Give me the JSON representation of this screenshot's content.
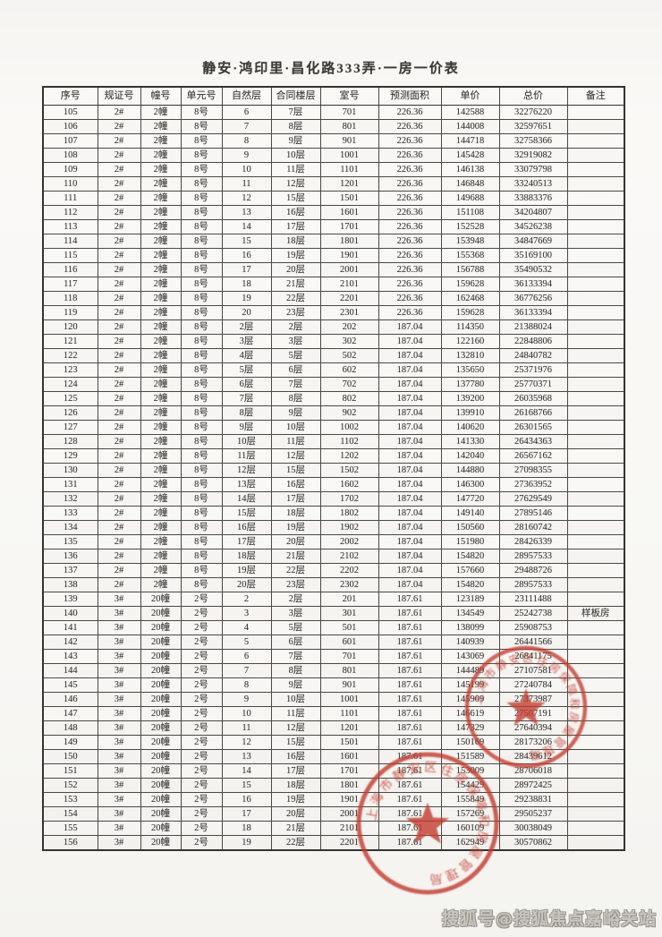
{
  "page": {
    "title": "静安·鸿印里·昌化路333弄·一房一价表"
  },
  "watermark": {
    "text": "搜狐号@搜狐焦点嘉峪关站"
  },
  "colors": {
    "stamp_red": "#c23b2e",
    "ink": "#3a3835",
    "paper": "#f8f7f4",
    "watermark_gray": "#9b9892"
  },
  "stamps": [
    {
      "shape": "circle-with-star",
      "ring_text": "上海市静安区住房保障和房屋管理局"
    },
    {
      "shape": "circle-with-star",
      "ring_text": "上海市静安区住房保障和房屋管理局"
    }
  ],
  "table": {
    "columns": [
      "序号",
      "规证号",
      "幢号",
      "单元号",
      "自然层",
      "合同楼层",
      "室号",
      "预测面积",
      "单价",
      "总价",
      "备注"
    ],
    "column_keys": [
      "index",
      "permit-no",
      "building-no",
      "unit-no",
      "natural-floor",
      "contract-floor",
      "room-no",
      "estimated-area",
      "unit-price",
      "total-price",
      "remark"
    ],
    "rows": [
      [
        "105",
        "2#",
        "2幢",
        "8号",
        "6",
        "7层",
        "701",
        "226.36",
        "142588",
        "32276220",
        ""
      ],
      [
        "106",
        "2#",
        "2幢",
        "8号",
        "7",
        "8层",
        "801",
        "226.36",
        "144008",
        "32597651",
        ""
      ],
      [
        "107",
        "2#",
        "2幢",
        "8号",
        "8",
        "9层",
        "901",
        "226.36",
        "144718",
        "32758366",
        ""
      ],
      [
        "108",
        "2#",
        "2幢",
        "8号",
        "9",
        "10层",
        "1001",
        "226.36",
        "145428",
        "32919082",
        ""
      ],
      [
        "109",
        "2#",
        "2幢",
        "8号",
        "10",
        "11层",
        "1101",
        "226.36",
        "146138",
        "33079798",
        ""
      ],
      [
        "110",
        "2#",
        "2幢",
        "8号",
        "11",
        "12层",
        "1201",
        "226.36",
        "146848",
        "33240513",
        ""
      ],
      [
        "111",
        "2#",
        "2幢",
        "8号",
        "12",
        "15层",
        "1501",
        "226.36",
        "149688",
        "33883376",
        ""
      ],
      [
        "112",
        "2#",
        "2幢",
        "8号",
        "13",
        "16层",
        "1601",
        "226.36",
        "151108",
        "34204807",
        ""
      ],
      [
        "113",
        "2#",
        "2幢",
        "8号",
        "14",
        "17层",
        "1701",
        "226.36",
        "152528",
        "34526238",
        ""
      ],
      [
        "114",
        "2#",
        "2幢",
        "8号",
        "15",
        "18层",
        "1801",
        "226.36",
        "153948",
        "34847669",
        ""
      ],
      [
        "115",
        "2#",
        "2幢",
        "8号",
        "16",
        "19层",
        "1901",
        "226.36",
        "155368",
        "35169100",
        ""
      ],
      [
        "116",
        "2#",
        "2幢",
        "8号",
        "17",
        "20层",
        "2001",
        "226.36",
        "156788",
        "35490532",
        ""
      ],
      [
        "117",
        "2#",
        "2幢",
        "8号",
        "18",
        "21层",
        "2101",
        "226.36",
        "159628",
        "36133394",
        ""
      ],
      [
        "118",
        "2#",
        "2幢",
        "8号",
        "19",
        "22层",
        "2201",
        "226.36",
        "162468",
        "36776256",
        ""
      ],
      [
        "119",
        "2#",
        "2幢",
        "8号",
        "20",
        "23层",
        "2301",
        "226.36",
        "159628",
        "36133394",
        ""
      ],
      [
        "120",
        "2#",
        "2幢",
        "8号",
        "2层",
        "2层",
        "202",
        "187.04",
        "114350",
        "21388024",
        ""
      ],
      [
        "121",
        "2#",
        "2幢",
        "8号",
        "3层",
        "3层",
        "302",
        "187.04",
        "122160",
        "22848806",
        ""
      ],
      [
        "122",
        "2#",
        "2幢",
        "8号",
        "4层",
        "5层",
        "502",
        "187.04",
        "132810",
        "24840782",
        ""
      ],
      [
        "123",
        "2#",
        "2幢",
        "8号",
        "5层",
        "6层",
        "602",
        "187.04",
        "135650",
        "25371976",
        ""
      ],
      [
        "124",
        "2#",
        "2幢",
        "8号",
        "6层",
        "7层",
        "702",
        "187.04",
        "137780",
        "25770371",
        ""
      ],
      [
        "125",
        "2#",
        "2幢",
        "8号",
        "7层",
        "8层",
        "802",
        "187.04",
        "139200",
        "26035968",
        ""
      ],
      [
        "126",
        "2#",
        "2幢",
        "8号",
        "8层",
        "9层",
        "902",
        "187.04",
        "139910",
        "26168766",
        ""
      ],
      [
        "127",
        "2#",
        "2幢",
        "8号",
        "9层",
        "10层",
        "1002",
        "187.04",
        "140620",
        "26301565",
        ""
      ],
      [
        "128",
        "2#",
        "2幢",
        "8号",
        "10层",
        "11层",
        "1102",
        "187.04",
        "141330",
        "26434363",
        ""
      ],
      [
        "129",
        "2#",
        "2幢",
        "8号",
        "11层",
        "12层",
        "1202",
        "187.04",
        "142040",
        "26567162",
        ""
      ],
      [
        "130",
        "2#",
        "2幢",
        "8号",
        "12层",
        "15层",
        "1502",
        "187.04",
        "144880",
        "27098355",
        ""
      ],
      [
        "131",
        "2#",
        "2幢",
        "8号",
        "13层",
        "16层",
        "1602",
        "187.04",
        "146300",
        "27363952",
        ""
      ],
      [
        "132",
        "2#",
        "2幢",
        "8号",
        "14层",
        "17层",
        "1702",
        "187.04",
        "147720",
        "27629549",
        ""
      ],
      [
        "133",
        "2#",
        "2幢",
        "8号",
        "15层",
        "18层",
        "1802",
        "187.04",
        "149140",
        "27895146",
        ""
      ],
      [
        "134",
        "2#",
        "2幢",
        "8号",
        "16层",
        "19层",
        "1902",
        "187.04",
        "150560",
        "28160742",
        ""
      ],
      [
        "135",
        "2#",
        "2幢",
        "8号",
        "17层",
        "20层",
        "2002",
        "187.04",
        "151980",
        "28426339",
        ""
      ],
      [
        "136",
        "2#",
        "2幢",
        "8号",
        "18层",
        "21层",
        "2102",
        "187.04",
        "154820",
        "28957533",
        ""
      ],
      [
        "137",
        "2#",
        "2幢",
        "8号",
        "19层",
        "22层",
        "2202",
        "187.04",
        "157660",
        "29488726",
        ""
      ],
      [
        "138",
        "2#",
        "2幢",
        "8号",
        "20层",
        "23层",
        "2302",
        "187.04",
        "154820",
        "28957533",
        ""
      ],
      [
        "139",
        "3#",
        "20幢",
        "2号",
        "2",
        "2层",
        "201",
        "187.61",
        "123189",
        "23111488",
        ""
      ],
      [
        "140",
        "3#",
        "20幢",
        "2号",
        "3",
        "3层",
        "301",
        "187.61",
        "134549",
        "25242738",
        "样板房"
      ],
      [
        "141",
        "3#",
        "20幢",
        "2号",
        "4",
        "5层",
        "501",
        "187.61",
        "138099",
        "25908753",
        ""
      ],
      [
        "142",
        "3#",
        "20幢",
        "2号",
        "5",
        "6层",
        "601",
        "187.61",
        "140939",
        "26441566",
        ""
      ],
      [
        "143",
        "3#",
        "20幢",
        "2号",
        "6",
        "7层",
        "701",
        "187.61",
        "143069",
        "26841175",
        ""
      ],
      [
        "144",
        "3#",
        "20幢",
        "2号",
        "7",
        "8层",
        "801",
        "187.61",
        "144489",
        "27107581",
        ""
      ],
      [
        "145",
        "3#",
        "20幢",
        "2号",
        "8",
        "9层",
        "901",
        "187.61",
        "145199",
        "27240784",
        ""
      ],
      [
        "146",
        "3#",
        "20幢",
        "2号",
        "9",
        "10层",
        "1001",
        "187.61",
        "145909",
        "27373987",
        ""
      ],
      [
        "147",
        "3#",
        "20幢",
        "2号",
        "10",
        "11层",
        "1101",
        "187.61",
        "146619",
        "27507191",
        ""
      ],
      [
        "148",
        "3#",
        "20幢",
        "2号",
        "11",
        "12层",
        "1201",
        "187.61",
        "147329",
        "27640394",
        ""
      ],
      [
        "149",
        "3#",
        "20幢",
        "2号",
        "12",
        "15层",
        "1501",
        "187.61",
        "150169",
        "28173206",
        ""
      ],
      [
        "150",
        "3#",
        "20幢",
        "2号",
        "13",
        "16层",
        "1601",
        "187.61",
        "151589",
        "28439612",
        ""
      ],
      [
        "151",
        "3#",
        "20幢",
        "2号",
        "14",
        "17层",
        "1701",
        "187.61",
        "153009",
        "28706018",
        ""
      ],
      [
        "152",
        "3#",
        "20幢",
        "2号",
        "15",
        "18层",
        "1801",
        "187.61",
        "154429",
        "28972425",
        ""
      ],
      [
        "153",
        "3#",
        "20幢",
        "2号",
        "16",
        "19层",
        "1901",
        "187.61",
        "155849",
        "29238831",
        ""
      ],
      [
        "154",
        "3#",
        "20幢",
        "2号",
        "17",
        "20层",
        "2001",
        "187.61",
        "157269",
        "29505237",
        ""
      ],
      [
        "155",
        "3#",
        "20幢",
        "2号",
        "18",
        "21层",
        "2101",
        "187.61",
        "160109",
        "30038049",
        ""
      ],
      [
        "156",
        "3#",
        "20幢",
        "2号",
        "19",
        "22层",
        "2201",
        "187.61",
        "162949",
        "30570862",
        ""
      ]
    ]
  }
}
